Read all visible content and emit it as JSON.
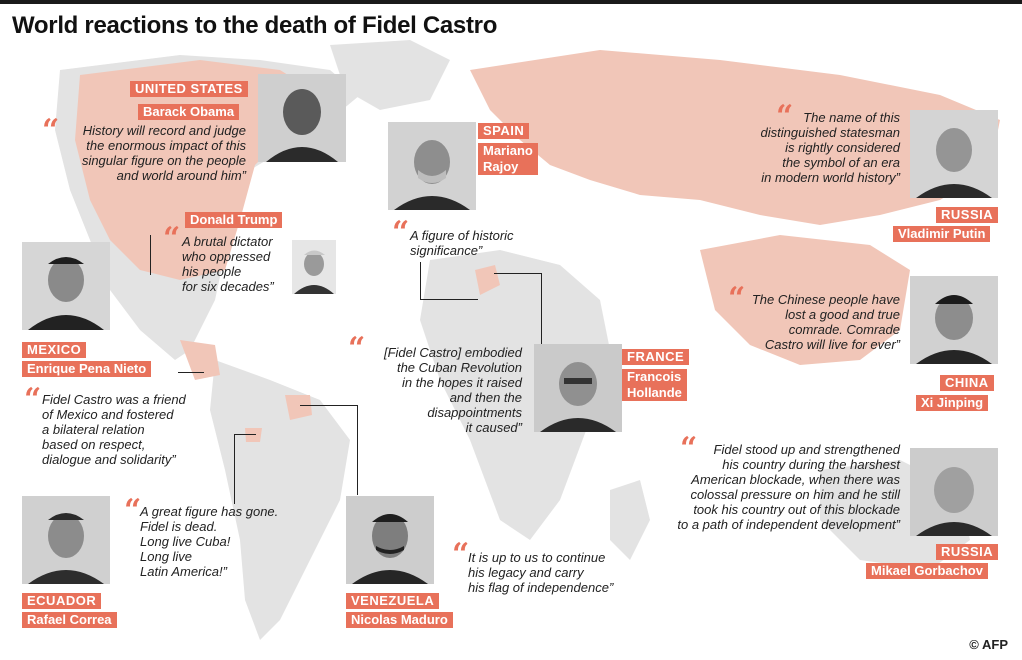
{
  "title": "World reactions to the death of Fidel Castro",
  "accent_color": "#e8715a",
  "credit": "© AFP",
  "entries": {
    "us_obama": {
      "country": "UNITED STATES",
      "name": "Barack Obama",
      "quote": [
        "History will record and judge",
        "the enormous impact of this",
        "singular figure on the people",
        "and world around him”"
      ]
    },
    "us_trump": {
      "name": "Donald Trump",
      "quote": [
        "A brutal dictator",
        "who oppressed",
        "his people",
        "for six decades”"
      ]
    },
    "mexico": {
      "country": "MEXICO",
      "name": "Enrique Pena Nieto",
      "quote": [
        "Fidel Castro was a friend",
        "of Mexico and fostered",
        "a bilateral relation",
        "based on respect,",
        "dialogue and solidarity”"
      ]
    },
    "ecuador": {
      "country": "ECUADOR",
      "name": "Rafael Correa",
      "quote": [
        "A great figure has gone.",
        "Fidel is dead.",
        "Long live Cuba!",
        "Long live",
        "Latin America!”"
      ]
    },
    "venezuela": {
      "country": "VENEZUELA",
      "name": "Nicolas Maduro",
      "quote": [
        "It is up to us to continue",
        "his legacy and carry",
        "his flag of independence”"
      ]
    },
    "spain": {
      "country": "SPAIN",
      "name": [
        "Mariano",
        "Rajoy"
      ],
      "quote": [
        "A figure of historic",
        "significance”"
      ]
    },
    "france": {
      "country": "FRANCE",
      "name": [
        "Francois",
        "Hollande"
      ],
      "quote": [
        "[Fidel Castro] embodied",
        "the Cuban Revolution",
        "in the hopes it raised",
        "and then the",
        "disappointments",
        "it caused”"
      ]
    },
    "russia_putin": {
      "country": "RUSSIA",
      "name": "Vladimir Putin",
      "quote": [
        "The name of this",
        "distinguished  statesman",
        "is rightly considered",
        "the symbol of an era",
        "in modern world history”"
      ]
    },
    "china": {
      "country": "CHINA",
      "name": "Xi Jinping",
      "quote": [
        "The Chinese people have",
        "lost a good and true",
        "comrade. Comrade",
        "Castro will live for ever”"
      ]
    },
    "russia_gorbachov": {
      "country": "RUSSIA",
      "name": "Mikael Gorbachov",
      "quote": [
        "Fidel stood up and strengthened",
        "his country during the harshest",
        "American blockade, when there was",
        "colossal pressure on him and he still",
        "took his country out of this blockade",
        "to a path of independent development”"
      ]
    }
  }
}
